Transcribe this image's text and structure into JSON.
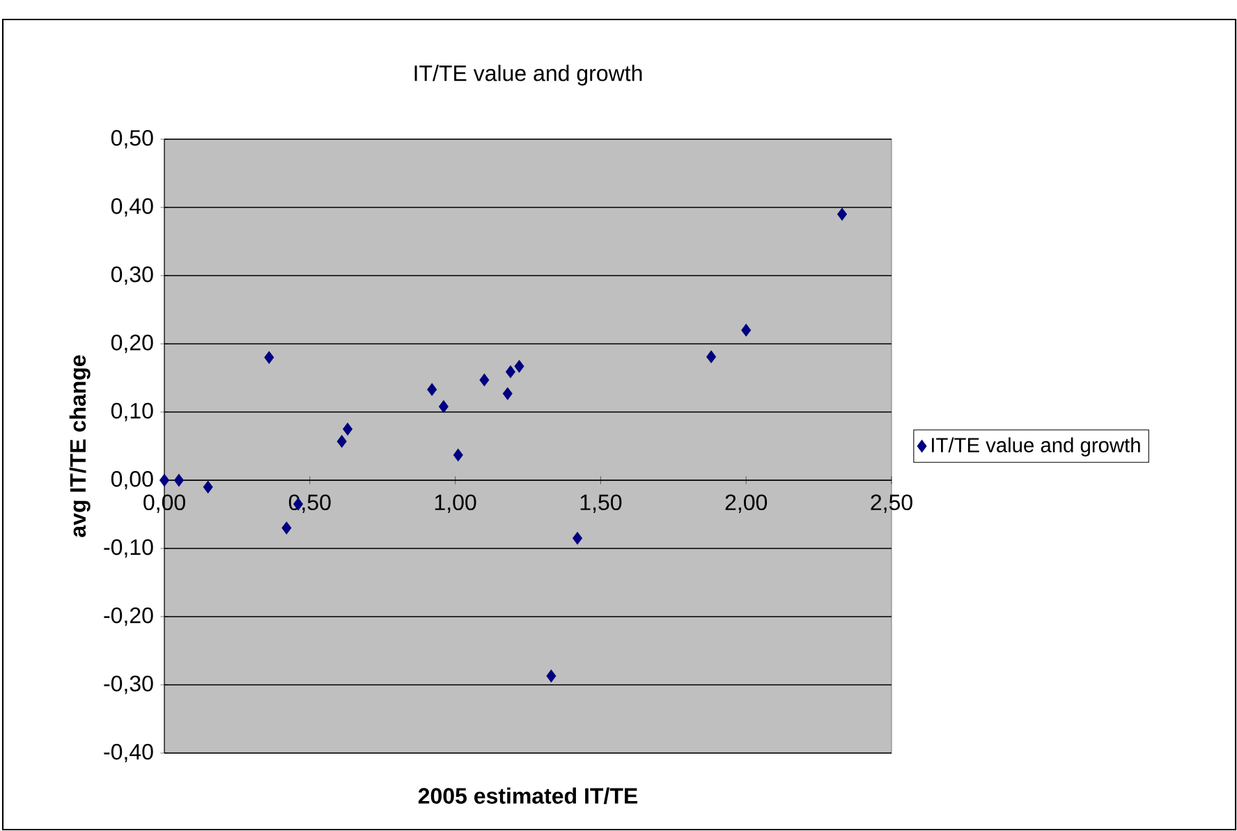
{
  "chart_data": {
    "type": "scatter",
    "title": "IT/TE value and growth",
    "xlabel": "2005 estimated IT/TE",
    "ylabel": "avg IT/TE change",
    "x": [
      0.0,
      0.05,
      0.15,
      0.36,
      0.42,
      0.46,
      0.61,
      0.63,
      0.92,
      0.96,
      1.01,
      1.1,
      1.18,
      1.19,
      1.22,
      1.33,
      1.42,
      1.88,
      2.0,
      2.33
    ],
    "series": [
      {
        "name": "IT/TE value and growth",
        "color": "#000080",
        "values": [
          0.0,
          0.0,
          -0.01,
          0.18,
          -0.07,
          -0.035,
          0.057,
          0.075,
          0.133,
          0.108,
          0.037,
          0.147,
          0.127,
          0.159,
          0.167,
          -0.287,
          -0.085,
          0.181,
          0.22,
          0.39
        ]
      }
    ],
    "xlim": [
      0,
      2.5
    ],
    "ylim": [
      -0.4,
      0.5
    ],
    "xticks": [
      {
        "value": 0,
        "label": "0,00"
      },
      {
        "value": 0.5,
        "label": "0,50"
      },
      {
        "value": 1,
        "label": "1,00"
      },
      {
        "value": 1.5,
        "label": "1,50"
      },
      {
        "value": 2,
        "label": "2,00"
      },
      {
        "value": 2.5,
        "label": "2,50"
      }
    ],
    "yticks": [
      {
        "value": -0.4,
        "label": "-0,40"
      },
      {
        "value": -0.3,
        "label": "-0,30"
      },
      {
        "value": -0.2,
        "label": "-0,20"
      },
      {
        "value": -0.1,
        "label": "-0,10"
      },
      {
        "value": 0,
        "label": "0,00"
      },
      {
        "value": 0.1,
        "label": "0,10"
      },
      {
        "value": 0.2,
        "label": "0,20"
      },
      {
        "value": 0.3,
        "label": "0,30"
      },
      {
        "value": 0.4,
        "label": "0,40"
      },
      {
        "value": 0.5,
        "label": "0,50"
      }
    ],
    "grid": "y",
    "legend": "right",
    "marker": "diamond"
  }
}
